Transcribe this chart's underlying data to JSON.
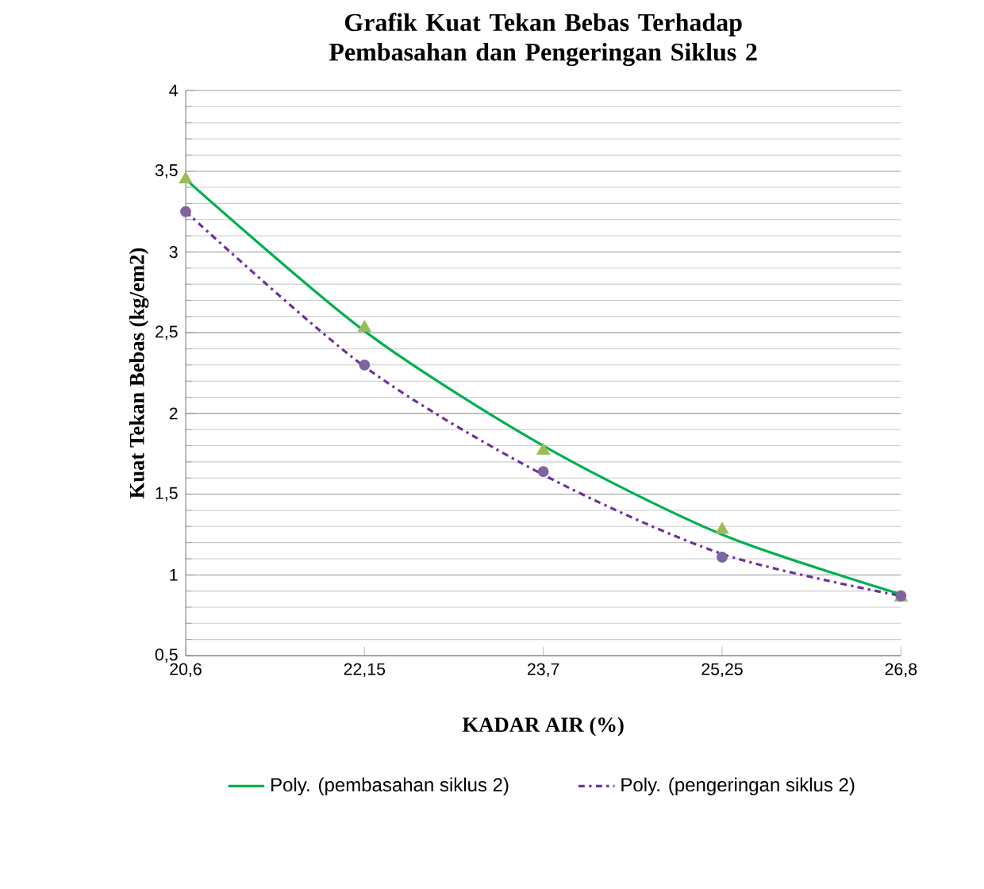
{
  "chart_data": {
    "type": "line",
    "title": "Grafik Kuat Tekan Bebas Terhadap Pembasahan dan Pengeringan Siklus 2",
    "xlabel": "KADAR AIR (%)",
    "ylabel": "Kuat Tekan Bebas (kg/em2)",
    "x": [
      20.6,
      22.15,
      23.7,
      25.25,
      26.8
    ],
    "series": [
      {
        "type": "scatter",
        "color": "#8064a2",
        "marker": "circle",
        "values": [
          3.25,
          2.3,
          1.64,
          1.11,
          0.87
        ]
      },
      {
        "type": "scatter",
        "color": "#9bbb59",
        "marker": "triangle",
        "values": [
          3.45,
          2.53,
          1.77,
          1.28,
          0.86
        ]
      },
      {
        "name": "Poly. (pembasahan siklus 2)",
        "color": "#00b050",
        "line_style": "solid",
        "values": [
          3.45,
          2.51,
          1.8,
          1.25,
          0.88
        ]
      },
      {
        "name": "Poly. (pengeringan siklus 2)",
        "color": "#7030a0",
        "line_style": "dashdot",
        "values": [
          3.25,
          2.29,
          1.62,
          1.13,
          0.87
        ]
      }
    ],
    "xlim": [
      20.6,
      26.8
    ],
    "xticks": [
      {
        "value": 20.6,
        "label": "20,6"
      },
      {
        "value": 22.15,
        "label": "22,15"
      },
      {
        "value": 23.7,
        "label": "23,7"
      },
      {
        "value": 25.25,
        "label": "25,25"
      },
      {
        "value": 26.8,
        "label": "26,8"
      }
    ],
    "ylim": [
      0.5,
      4
    ],
    "yticks": [
      {
        "value": 0.5,
        "label": "0,5"
      },
      1,
      {
        "value": 1.5,
        "label": "1,5"
      },
      2,
      {
        "value": 2.5,
        "label": "2,5"
      },
      3,
      {
        "value": 3.5,
        "label": "3,5"
      },
      4
    ],
    "grid": "y",
    "legend": "bottom"
  }
}
